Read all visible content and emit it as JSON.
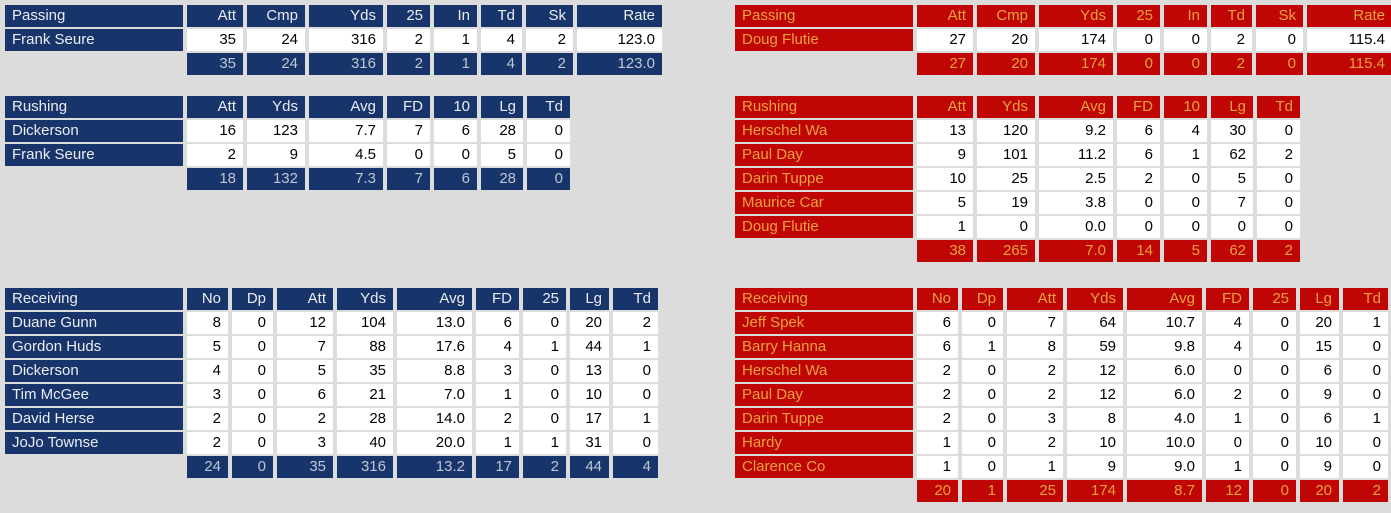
{
  "page": {
    "background": "#dcdcdc"
  },
  "teams": [
    {
      "id": "home",
      "theme": {
        "cell_bg": "#17356b",
        "header_text": "#ececf2",
        "totals_text": "#c2c6d2",
        "data_bg": "#ffffff",
        "data_text": "#000000"
      },
      "tables": [
        {
          "title": "Passing",
          "columns": [
            "Att",
            "Cmp",
            "Yds",
            "25",
            "In",
            "Td",
            "Sk",
            "Rate"
          ],
          "rows": [
            {
              "name": "Frank Seure",
              "values": [
                "35",
                "24",
                "316",
                "2",
                "1",
                "4",
                "2",
                "123.0"
              ]
            }
          ],
          "totals": [
            "35",
            "24",
            "316",
            "2",
            "1",
            "4",
            "2",
            "123.0"
          ]
        },
        {
          "title": "Rushing",
          "columns": [
            "Att",
            "Yds",
            "Avg",
            "FD",
            "10",
            "Lg",
            "Td"
          ],
          "rows": [
            {
              "name": "Dickerson",
              "values": [
                "16",
                "123",
                "7.7",
                "7",
                "6",
                "28",
                "0"
              ]
            },
            {
              "name": "Frank Seure",
              "values": [
                "2",
                "9",
                "4.5",
                "0",
                "0",
                "5",
                "0"
              ]
            }
          ],
          "totals": [
            "18",
            "132",
            "7.3",
            "7",
            "6",
            "28",
            "0"
          ]
        },
        {
          "title": "Receiving",
          "columns": [
            "No",
            "Dp",
            "Att",
            "Yds",
            "Avg",
            "FD",
            "25",
            "Lg",
            "Td"
          ],
          "rows": [
            {
              "name": "Duane Gunn",
              "values": [
                "8",
                "0",
                "12",
                "104",
                "13.0",
                "6",
                "0",
                "20",
                "2"
              ]
            },
            {
              "name": "Gordon Huds",
              "values": [
                "5",
                "0",
                "7",
                "88",
                "17.6",
                "4",
                "1",
                "44",
                "1"
              ]
            },
            {
              "name": "Dickerson",
              "values": [
                "4",
                "0",
                "5",
                "35",
                "8.8",
                "3",
                "0",
                "13",
                "0"
              ]
            },
            {
              "name": "Tim McGee",
              "values": [
                "3",
                "0",
                "6",
                "21",
                "7.0",
                "1",
                "0",
                "10",
                "0"
              ]
            },
            {
              "name": "David Herse",
              "values": [
                "2",
                "0",
                "2",
                "28",
                "14.0",
                "2",
                "0",
                "17",
                "1"
              ]
            },
            {
              "name": "JoJo Townse",
              "values": [
                "2",
                "0",
                "3",
                "40",
                "20.0",
                "1",
                "1",
                "31",
                "0"
              ]
            }
          ],
          "totals": [
            "24",
            "0",
            "35",
            "316",
            "13.2",
            "17",
            "2",
            "44",
            "4"
          ]
        }
      ]
    },
    {
      "id": "away",
      "theme": {
        "cell_bg": "#c00505",
        "header_text": "#e8a33c",
        "totals_text": "#e8a33c",
        "data_bg": "#ffffff",
        "data_text": "#000000"
      },
      "tables": [
        {
          "title": "Passing",
          "columns": [
            "Att",
            "Cmp",
            "Yds",
            "25",
            "In",
            "Td",
            "Sk",
            "Rate"
          ],
          "rows": [
            {
              "name": "Doug Flutie",
              "values": [
                "27",
                "20",
                "174",
                "0",
                "0",
                "2",
                "0",
                "115.4"
              ]
            }
          ],
          "totals": [
            "27",
            "20",
            "174",
            "0",
            "0",
            "2",
            "0",
            "115.4"
          ]
        },
        {
          "title": "Rushing",
          "columns": [
            "Att",
            "Yds",
            "Avg",
            "FD",
            "10",
            "Lg",
            "Td"
          ],
          "rows": [
            {
              "name": "Herschel Wa",
              "values": [
                "13",
                "120",
                "9.2",
                "6",
                "4",
                "30",
                "0"
              ]
            },
            {
              "name": "Paul Day",
              "values": [
                "9",
                "101",
                "11.2",
                "6",
                "1",
                "62",
                "2"
              ]
            },
            {
              "name": "Darin Tuppe",
              "values": [
                "10",
                "25",
                "2.5",
                "2",
                "0",
                "5",
                "0"
              ]
            },
            {
              "name": "Maurice Car",
              "values": [
                "5",
                "19",
                "3.8",
                "0",
                "0",
                "7",
                "0"
              ]
            },
            {
              "name": "Doug Flutie",
              "values": [
                "1",
                "0",
                "0.0",
                "0",
                "0",
                "0",
                "0"
              ]
            }
          ],
          "totals": [
            "38",
            "265",
            "7.0",
            "14",
            "5",
            "62",
            "2"
          ]
        },
        {
          "title": "Receiving",
          "columns": [
            "No",
            "Dp",
            "Att",
            "Yds",
            "Avg",
            "FD",
            "25",
            "Lg",
            "Td"
          ],
          "rows": [
            {
              "name": "Jeff Spek",
              "values": [
                "6",
                "0",
                "7",
                "64",
                "10.7",
                "4",
                "0",
                "20",
                "1"
              ]
            },
            {
              "name": "Barry Hanna",
              "values": [
                "6",
                "1",
                "8",
                "59",
                "9.8",
                "4",
                "0",
                "15",
                "0"
              ]
            },
            {
              "name": "Herschel Wa",
              "values": [
                "2",
                "0",
                "2",
                "12",
                "6.0",
                "0",
                "0",
                "6",
                "0"
              ]
            },
            {
              "name": "Paul Day",
              "values": [
                "2",
                "0",
                "2",
                "12",
                "6.0",
                "2",
                "0",
                "9",
                "0"
              ]
            },
            {
              "name": "Darin Tuppe",
              "values": [
                "2",
                "0",
                "3",
                "8",
                "4.0",
                "1",
                "0",
                "6",
                "1"
              ]
            },
            {
              "name": "Hardy",
              "values": [
                "1",
                "0",
                "2",
                "10",
                "10.0",
                "0",
                "0",
                "10",
                "0"
              ]
            },
            {
              "name": "Clarence Co",
              "values": [
                "1",
                "0",
                "1",
                "9",
                "9.0",
                "1",
                "0",
                "9",
                "0"
              ]
            }
          ],
          "totals": [
            "20",
            "1",
            "25",
            "174",
            "8.7",
            "12",
            "0",
            "20",
            "2"
          ]
        }
      ]
    }
  ]
}
